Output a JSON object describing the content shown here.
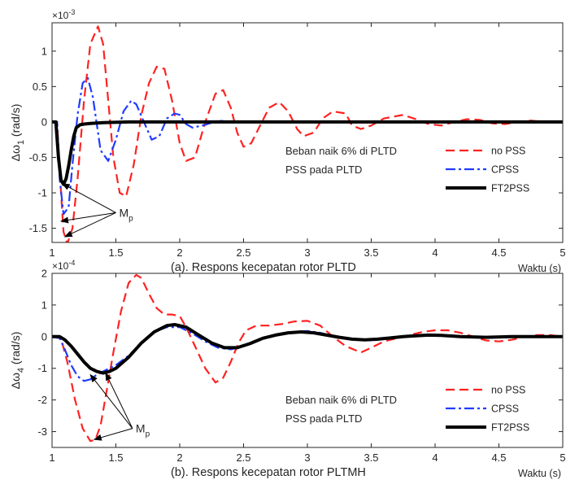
{
  "chart_data": [
    {
      "type": "line",
      "exponent_label": "×10",
      "exponent": "-3",
      "ylabel_main": "Δω",
      "ylabel_sub": "1",
      "ylabel_unit": " (rad/s)",
      "xlabel": "Waktu (s)",
      "caption": "(a). Respons kecepatan rotor PLTD",
      "xlim": [
        1,
        5
      ],
      "ylim": [
        -1.7,
        1.4
      ],
      "xticks": [
        1,
        1.5,
        2,
        2.5,
        3,
        3.5,
        4,
        4.5,
        5
      ],
      "xtick_labels": [
        "1",
        "1.5",
        "2",
        "2.5",
        "3",
        "3.5",
        "4",
        "4.5",
        "5"
      ],
      "yticks": [
        -1.5,
        -1,
        -0.5,
        0,
        0.5,
        1
      ],
      "ytick_labels": [
        "-1.5",
        "-1",
        "-0.5",
        "0",
        "0.5",
        "1"
      ],
      "annotation_lines": [
        "Beban naik 6% di PLTD",
        "PSS pada PLTD"
      ],
      "mp_label": "M",
      "mp_sub": "p",
      "mp_anchor": [
        1.5,
        -1.28
      ],
      "mp_targets": [
        [
          1.08,
          -0.87
        ],
        [
          1.07,
          -1.4
        ],
        [
          1.1,
          -1.62
        ]
      ],
      "legend_position": "right",
      "series": [
        {
          "name": "no PSS",
          "color": "#ff2222",
          "style": "dash",
          "width": 2.2,
          "x": [
            1.0,
            1.04,
            1.06,
            1.09,
            1.12,
            1.16,
            1.2,
            1.25,
            1.3,
            1.36,
            1.4,
            1.44,
            1.48,
            1.53,
            1.58,
            1.64,
            1.7,
            1.76,
            1.82,
            1.88,
            1.94,
            2.0,
            2.05,
            2.12,
            2.2,
            2.28,
            2.34,
            2.4,
            2.45,
            2.5,
            2.56,
            2.63,
            2.7,
            2.78,
            2.85,
            2.92,
            2.97,
            3.05,
            3.12,
            3.2,
            3.3,
            3.35,
            3.42,
            3.5,
            3.6,
            3.75,
            3.85,
            3.95,
            4.05,
            4.15,
            4.25,
            4.35,
            4.45,
            4.55,
            4.65,
            4.75,
            4.85,
            5.0
          ],
          "y": [
            0.0,
            0.0,
            -0.7,
            -1.55,
            -1.72,
            -1.5,
            -0.8,
            0.3,
            1.1,
            1.35,
            1.1,
            0.3,
            -0.5,
            -1.0,
            -1.05,
            -0.6,
            0.1,
            0.55,
            0.78,
            0.75,
            0.3,
            -0.3,
            -0.55,
            -0.5,
            0.0,
            0.4,
            0.45,
            0.2,
            -0.15,
            -0.35,
            -0.3,
            -0.05,
            0.2,
            0.28,
            0.15,
            -0.1,
            -0.2,
            -0.15,
            0.05,
            0.15,
            0.12,
            -0.05,
            -0.1,
            -0.05,
            0.05,
            0.1,
            0.04,
            -0.03,
            -0.05,
            0.0,
            0.04,
            0.03,
            -0.02,
            -0.03,
            0.0,
            0.02,
            0.0,
            0.0
          ]
        },
        {
          "name": "CPSS",
          "color": "#1f3cff",
          "style": "dashdot",
          "width": 2.2,
          "x": [
            1.0,
            1.04,
            1.06,
            1.09,
            1.13,
            1.16,
            1.2,
            1.24,
            1.28,
            1.32,
            1.38,
            1.44,
            1.5,
            1.56,
            1.62,
            1.66,
            1.72,
            1.78,
            1.84,
            1.9,
            1.96,
            2.0,
            2.05,
            2.1,
            2.2,
            2.3,
            2.4,
            2.5,
            2.7,
            3.0,
            3.5,
            4.0,
            5.0
          ],
          "y": [
            0.0,
            0.0,
            -0.8,
            -1.3,
            -1.2,
            -0.6,
            0.1,
            0.55,
            0.62,
            0.35,
            -0.4,
            -0.55,
            -0.25,
            0.15,
            0.3,
            0.25,
            0.0,
            -0.25,
            -0.2,
            0.05,
            0.12,
            0.1,
            -0.03,
            -0.08,
            -0.04,
            0.02,
            0.0,
            0.0,
            0.0,
            0.0,
            0.0,
            0.0,
            0.0
          ]
        },
        {
          "name": "FT2PSS",
          "color": "#000000",
          "style": "solid",
          "width": 4,
          "x": [
            1.0,
            1.03,
            1.05,
            1.07,
            1.09,
            1.11,
            1.13,
            1.15,
            1.17,
            1.19,
            1.22,
            1.25,
            1.3,
            1.4,
            1.6,
            2.0,
            3.0,
            4.0,
            5.0
          ],
          "y": [
            0.0,
            0.0,
            -0.5,
            -0.82,
            -0.88,
            -0.8,
            -0.62,
            -0.4,
            -0.2,
            -0.08,
            -0.04,
            -0.03,
            -0.02,
            -0.01,
            0.0,
            0.0,
            0.0,
            0.0,
            0.0
          ]
        }
      ]
    },
    {
      "type": "line",
      "exponent_label": "×10",
      "exponent": "-4",
      "ylabel_main": "Δω",
      "ylabel_sub": "4",
      "ylabel_unit": " (rad/s)",
      "xlabel": "Waktu (s)",
      "caption": "(b). Respons kecepatan rotor PLTMH",
      "xlim": [
        1,
        5
      ],
      "ylim": [
        -3.5,
        2.0
      ],
      "xticks": [
        1,
        1.5,
        2,
        2.5,
        3,
        3.5,
        4,
        4.5,
        5
      ],
      "xtick_labels": [
        "1",
        "1.5",
        "2",
        "2.5",
        "3",
        "3.5",
        "4",
        "4.5",
        "5"
      ],
      "yticks": [
        -3,
        -2,
        -1,
        0,
        1,
        2
      ],
      "ytick_labels": [
        "-3",
        "-2",
        "-1",
        "0",
        "1",
        "2"
      ],
      "annotation_lines": [
        "Beban naik 6% di PLTD",
        "PSS pada PLTD"
      ],
      "mp_label": "M",
      "mp_sub": "p",
      "mp_anchor": [
        1.63,
        -2.9
      ],
      "mp_targets": [
        [
          1.3,
          -1.2
        ],
        [
          1.42,
          -1.15
        ],
        [
          1.33,
          -3.25
        ]
      ],
      "legend_position": "right",
      "series": [
        {
          "name": "no PSS",
          "color": "#ff2222",
          "style": "dash",
          "width": 2.2,
          "x": [
            1.0,
            1.07,
            1.12,
            1.18,
            1.24,
            1.3,
            1.34,
            1.38,
            1.42,
            1.48,
            1.54,
            1.6,
            1.66,
            1.7,
            1.76,
            1.82,
            1.88,
            1.94,
            2.0,
            2.05,
            2.12,
            2.2,
            2.28,
            2.34,
            2.4,
            2.46,
            2.52,
            2.6,
            2.7,
            2.8,
            2.9,
            3.0,
            3.1,
            3.2,
            3.3,
            3.42,
            3.5,
            3.6,
            3.7,
            3.8,
            3.9,
            4.0,
            4.1,
            4.2,
            4.3,
            4.4,
            4.5,
            4.6,
            4.7,
            4.8,
            4.9,
            5.0
          ],
          "y": [
            0.0,
            -0.05,
            -0.8,
            -2.0,
            -2.9,
            -3.3,
            -3.25,
            -2.8,
            -1.9,
            -0.5,
            0.8,
            1.7,
            1.95,
            1.85,
            1.35,
            0.9,
            0.7,
            0.7,
            0.65,
            0.3,
            -0.3,
            -1.0,
            -1.45,
            -1.3,
            -0.8,
            -0.2,
            0.2,
            0.35,
            0.35,
            0.4,
            0.48,
            0.5,
            0.35,
            0.0,
            -0.3,
            -0.5,
            -0.35,
            -0.15,
            -0.05,
            0.05,
            0.15,
            0.2,
            0.2,
            0.12,
            0.0,
            -0.12,
            -0.15,
            -0.1,
            0.0,
            0.05,
            0.05,
            0.0
          ]
        },
        {
          "name": "CPSS",
          "color": "#1f3cff",
          "style": "dashdot",
          "width": 2.2,
          "x": [
            1.0,
            1.06,
            1.1,
            1.15,
            1.2,
            1.25,
            1.3,
            1.35,
            1.4,
            1.45,
            1.5,
            1.6,
            1.7,
            1.8,
            1.9,
            2.0,
            2.1,
            2.2,
            2.3,
            2.4,
            2.5,
            2.6,
            2.7,
            2.8,
            2.9,
            3.0,
            3.1,
            3.2,
            3.3,
            3.4,
            3.5,
            3.6,
            3.7,
            3.8,
            3.9,
            4.0,
            4.2,
            4.5,
            5.0
          ],
          "y": [
            0.0,
            -0.05,
            -0.4,
            -0.9,
            -1.25,
            -1.4,
            -1.35,
            -1.2,
            -1.1,
            -1.0,
            -0.9,
            -0.6,
            -0.2,
            0.15,
            0.3,
            0.3,
            0.1,
            -0.15,
            -0.35,
            -0.4,
            -0.3,
            -0.15,
            0.0,
            0.1,
            0.15,
            0.18,
            0.12,
            0.02,
            -0.05,
            -0.1,
            -0.12,
            -0.08,
            -0.02,
            0.02,
            0.05,
            0.05,
            0.0,
            -0.02,
            0.0
          ]
        },
        {
          "name": "FT2PSS",
          "color": "#000000",
          "style": "solid",
          "width": 4,
          "x": [
            1.0,
            1.06,
            1.1,
            1.15,
            1.2,
            1.25,
            1.3,
            1.35,
            1.4,
            1.45,
            1.5,
            1.6,
            1.7,
            1.8,
            1.9,
            1.96,
            2.05,
            2.15,
            2.25,
            2.35,
            2.45,
            2.55,
            2.65,
            2.75,
            2.85,
            2.95,
            3.05,
            3.15,
            3.25,
            3.35,
            3.45,
            3.55,
            3.65,
            3.75,
            3.85,
            3.95,
            4.05,
            4.2,
            4.4,
            4.6,
            5.0
          ],
          "y": [
            0.0,
            0.0,
            -0.1,
            -0.3,
            -0.55,
            -0.8,
            -1.0,
            -1.1,
            -1.15,
            -1.1,
            -1.0,
            -0.65,
            -0.2,
            0.15,
            0.35,
            0.38,
            0.3,
            0.05,
            -0.2,
            -0.35,
            -0.35,
            -0.22,
            -0.05,
            0.05,
            0.12,
            0.15,
            0.12,
            0.05,
            -0.02,
            -0.08,
            -0.1,
            -0.08,
            -0.04,
            0.0,
            0.03,
            0.05,
            0.04,
            0.0,
            -0.02,
            0.0,
            0.0
          ]
        }
      ]
    }
  ]
}
